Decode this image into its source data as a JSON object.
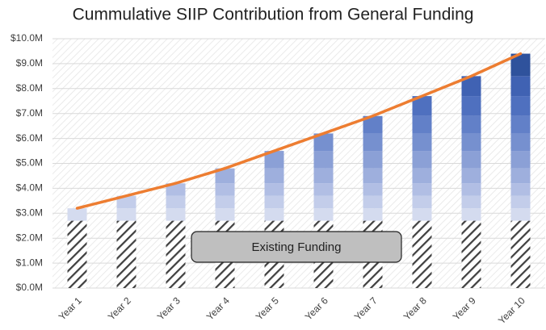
{
  "chart_data": {
    "type": "bar",
    "stacked": true,
    "title": "Cummulative SIIP Contribution from General Funding",
    "annotations": [
      "Existing Funding"
    ],
    "categories": [
      "Year 1",
      "Year 2",
      "Year 3",
      "Year 4",
      "Year 5",
      "Year 6",
      "Year 7",
      "Year 8",
      "Year 9",
      "Year 10"
    ],
    "series": [
      {
        "color": "#404040",
        "pattern": "hatch",
        "values": [
          2.7,
          2.7,
          2.7,
          2.7,
          2.7,
          2.7,
          2.7,
          2.7,
          2.7,
          2.7
        ]
      },
      {
        "color": "#d4dbef",
        "values": [
          0.5,
          0.5,
          0.5,
          0.5,
          0.5,
          0.5,
          0.5,
          0.5,
          0.5,
          0.5
        ]
      },
      {
        "color": "#c3cdea",
        "values": [
          null,
          0.5,
          0.5,
          0.5,
          0.5,
          0.5,
          0.5,
          0.5,
          0.5,
          0.5
        ]
      },
      {
        "color": "#b1bee4",
        "values": [
          null,
          null,
          0.5,
          0.5,
          0.5,
          0.5,
          0.5,
          0.5,
          0.5,
          0.5
        ]
      },
      {
        "color": "#9eafdd",
        "values": [
          null,
          null,
          null,
          0.6,
          0.6,
          0.6,
          0.6,
          0.6,
          0.6,
          0.6
        ]
      },
      {
        "color": "#8ba0d6",
        "values": [
          null,
          null,
          null,
          null,
          0.7,
          0.7,
          0.7,
          0.7,
          0.7,
          0.7
        ]
      },
      {
        "color": "#7690cf",
        "values": [
          null,
          null,
          null,
          null,
          null,
          0.7,
          0.7,
          0.7,
          0.7,
          0.7
        ]
      },
      {
        "color": "#6280c8",
        "values": [
          null,
          null,
          null,
          null,
          null,
          null,
          0.7,
          0.7,
          0.7,
          0.7
        ]
      },
      {
        "color": "#4f70bf",
        "values": [
          null,
          null,
          null,
          null,
          null,
          null,
          null,
          0.8,
          0.8,
          0.8
        ]
      },
      {
        "color": "#4062b3",
        "values": [
          null,
          null,
          null,
          null,
          null,
          null,
          null,
          null,
          0.8,
          0.8
        ]
      },
      {
        "color": "#2f529c",
        "values": [
          null,
          null,
          null,
          null,
          null,
          null,
          null,
          null,
          null,
          0.9
        ]
      },
      {
        "type": "line",
        "color": "#ed7d31",
        "values": [
          3.2,
          3.7,
          4.2,
          4.8,
          5.5,
          6.2,
          6.9,
          7.7,
          8.5,
          9.4
        ]
      }
    ],
    "ylim": [
      0,
      10
    ],
    "yticks": [
      {
        "value": 0,
        "label": "$0.0M"
      },
      {
        "value": 1,
        "label": "$1.0M"
      },
      {
        "value": 2,
        "label": "$2.0M"
      },
      {
        "value": 3,
        "label": "$3.0M"
      },
      {
        "value": 4,
        "label": "$4.0M"
      },
      {
        "value": 5,
        "label": "$5.0M"
      },
      {
        "value": 6,
        "label": "$6.0M"
      },
      {
        "value": 7,
        "label": "$7.0M"
      },
      {
        "value": 8,
        "label": "$8.0M"
      },
      {
        "value": 9,
        "label": "$9.0M"
      },
      {
        "value": 10,
        "label": "$10.0M"
      }
    ],
    "grid": true
  }
}
